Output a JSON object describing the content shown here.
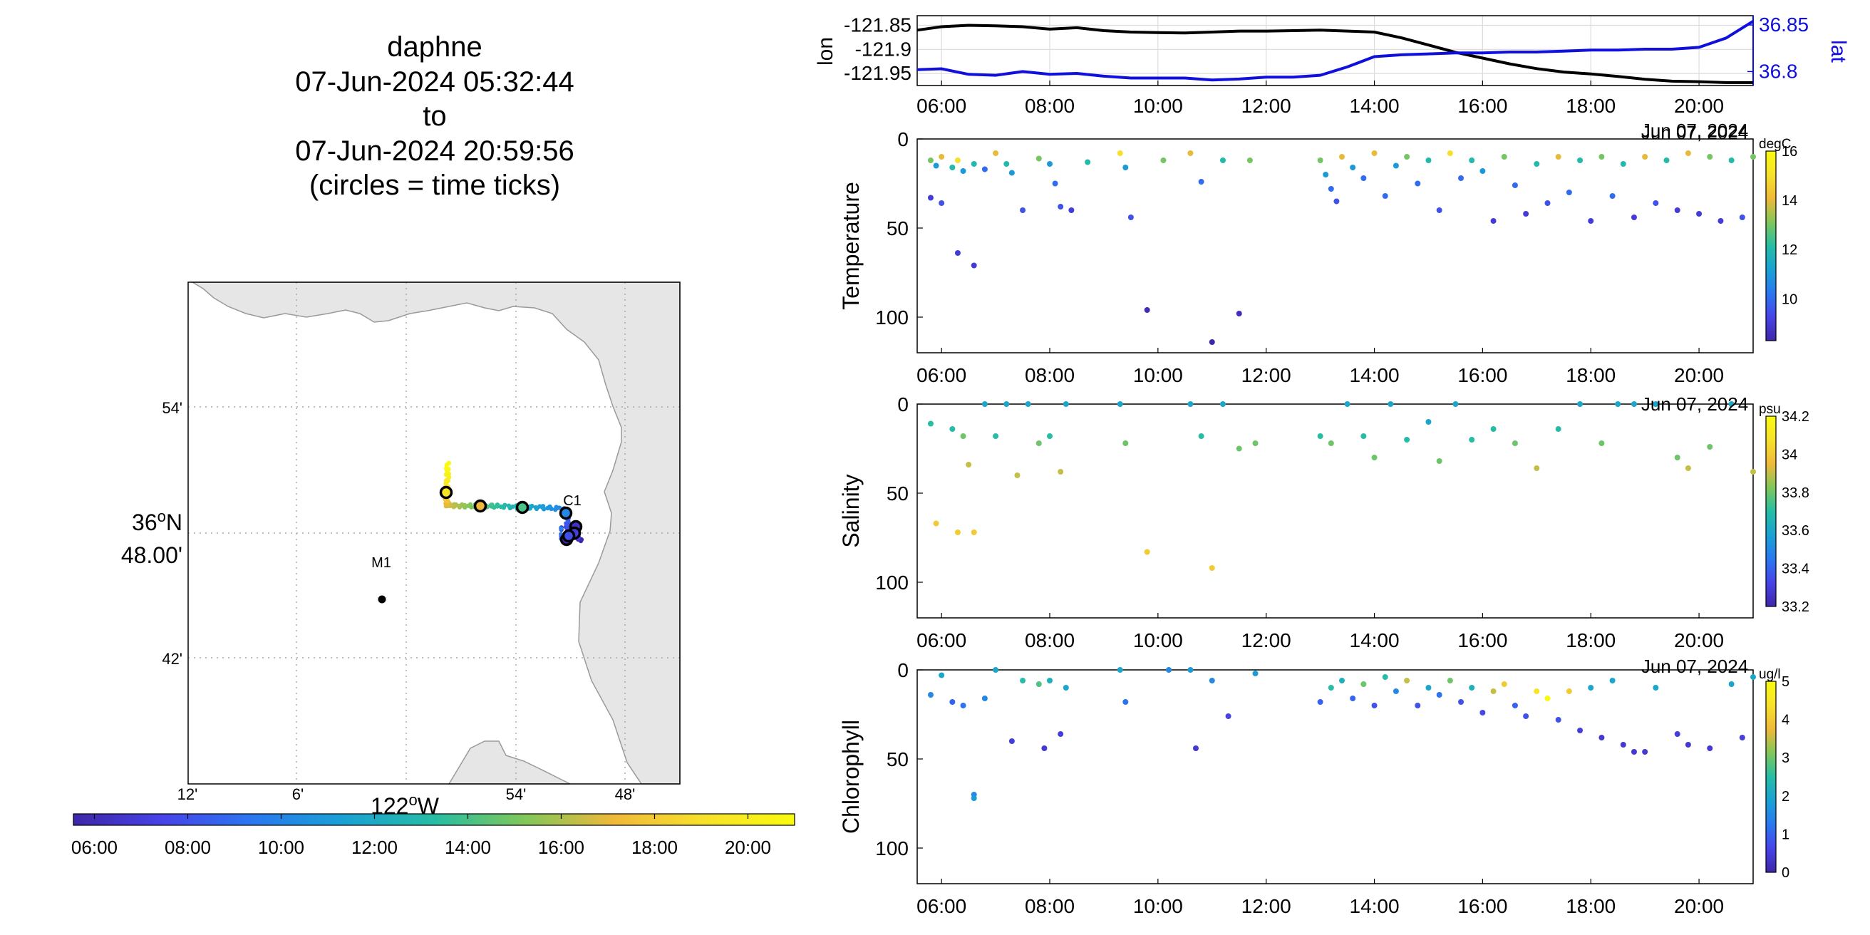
{
  "title_lines": [
    "daphne",
    "07-Jun-2024 05:32:44",
    "to",
    "07-Jun-2024 20:59:56",
    "(circles = time ticks)"
  ],
  "map": {
    "lat_ticks": [
      "54'",
      "36",
      "48.00'",
      "42'"
    ],
    "lat_degree_label": "o",
    "lat_hemisphere": "N",
    "lon_ticks": [
      "12'",
      "6'",
      "54'",
      "48'"
    ],
    "lon_main": "122",
    "lon_degree_label": "o",
    "lon_hemisphere": "W",
    "labels": [
      "C1",
      "M1"
    ],
    "colorbar_ticks": [
      "06:00",
      "08:00",
      "10:00",
      "12:00",
      "14:00",
      "16:00",
      "18:00",
      "20:00"
    ],
    "colormap": [
      "#3e26a8",
      "#4744e8",
      "#2a78f0",
      "#1aa1d4",
      "#26bda4",
      "#80c75a",
      "#f0b93a",
      "#f7e12b",
      "#f9fb0e"
    ]
  },
  "time_axis": {
    "ticks": [
      "06:00",
      "08:00",
      "10:00",
      "12:00",
      "14:00",
      "16:00",
      "18:00",
      "20:00"
    ],
    "date_label": "Jun 07, 2024",
    "start_hour": 5.55,
    "end_hour": 21.0
  },
  "chart_data": [
    {
      "type": "line",
      "ylabel_left": "lon",
      "ylabel_right": "lat",
      "left_ticks": [
        "-121.85",
        "-121.9",
        "-121.95"
      ],
      "right_ticks": [
        "36.85",
        "36.8"
      ],
      "series": [
        {
          "name": "lon",
          "color": "#000000",
          "x_hours": [
            5.55,
            6,
            6.5,
            7,
            7.5,
            8,
            8.5,
            9,
            9.5,
            10,
            10.5,
            11,
            11.5,
            12,
            12.5,
            13,
            13.5,
            14,
            14.5,
            15,
            15.5,
            16,
            16.5,
            17,
            17.5,
            18,
            18.5,
            19,
            19.5,
            20,
            20.5,
            21
          ],
          "values": [
            -121.86,
            -121.853,
            -121.85,
            -121.851,
            -121.853,
            -121.858,
            -121.855,
            -121.861,
            -121.864,
            -121.865,
            -121.866,
            -121.864,
            -121.862,
            -121.862,
            -121.861,
            -121.86,
            -121.862,
            -121.864,
            -121.876,
            -121.891,
            -121.906,
            -121.918,
            -121.93,
            -121.94,
            -121.947,
            -121.951,
            -121.956,
            -121.962,
            -121.966,
            -121.967,
            -121.969,
            -121.969
          ]
        },
        {
          "name": "lat",
          "color": "#1010dd",
          "x_hours": [
            5.55,
            6,
            6.5,
            7,
            7.5,
            8,
            8.5,
            9,
            9.5,
            10,
            10.5,
            11,
            11.5,
            12,
            12.5,
            13,
            13.5,
            14,
            14.5,
            15,
            15.5,
            16,
            16.5,
            17,
            17.5,
            18,
            18.5,
            19,
            19.5,
            20,
            20.5,
            21
          ],
          "values": [
            36.802,
            36.803,
            36.797,
            36.796,
            36.8,
            36.797,
            36.798,
            36.795,
            36.793,
            36.793,
            36.793,
            36.791,
            36.792,
            36.794,
            36.794,
            36.796,
            36.805,
            36.816,
            36.818,
            36.819,
            36.82,
            36.82,
            36.821,
            36.821,
            36.822,
            36.823,
            36.823,
            36.824,
            36.824,
            36.826,
            36.836,
            36.854
          ]
        }
      ]
    },
    {
      "type": "scatter",
      "ylabel": "Temperature",
      "unit": "degC",
      "colorbar_ticks": [
        "16",
        "14",
        "12",
        "10"
      ],
      "clim": [
        8.3,
        16
      ],
      "y_ticks": [
        "0",
        "50",
        "100"
      ],
      "ylim": [
        0,
        120
      ],
      "points": [
        [
          5.8,
          12,
          13
        ],
        [
          5.9,
          15,
          11
        ],
        [
          6.0,
          10,
          14
        ],
        [
          6.2,
          16,
          12
        ],
        [
          6.3,
          12,
          15
        ],
        [
          6.4,
          18,
          11
        ],
        [
          5.8,
          33,
          9
        ],
        [
          6.0,
          36,
          9.5
        ],
        [
          6.3,
          64,
          9
        ],
        [
          6.6,
          71,
          9
        ],
        [
          6.6,
          14,
          12
        ],
        [
          6.8,
          17,
          10
        ],
        [
          7.0,
          8,
          14
        ],
        [
          7.2,
          14,
          12
        ],
        [
          7.3,
          19,
          11
        ],
        [
          7.5,
          40,
          9.5
        ],
        [
          7.8,
          11,
          13
        ],
        [
          8.0,
          14,
          11
        ],
        [
          8.1,
          25,
          10
        ],
        [
          8.2,
          38,
          9.5
        ],
        [
          8.4,
          40,
          9
        ],
        [
          8.7,
          13,
          12
        ],
        [
          9.3,
          8,
          15
        ],
        [
          9.4,
          16,
          11
        ],
        [
          9.5,
          44,
          9.5
        ],
        [
          9.8,
          96,
          8.5
        ],
        [
          10.1,
          12,
          13
        ],
        [
          10.6,
          8,
          14
        ],
        [
          10.8,
          24,
          10
        ],
        [
          11.0,
          114,
          8.3
        ],
        [
          11.2,
          12,
          12
        ],
        [
          11.5,
          98,
          8.6
        ],
        [
          11.7,
          12,
          13
        ],
        [
          13.0,
          12,
          13
        ],
        [
          13.1,
          20,
          11
        ],
        [
          13.2,
          28,
          10
        ],
        [
          13.3,
          35,
          9.5
        ],
        [
          13.4,
          10,
          14
        ],
        [
          13.6,
          16,
          11
        ],
        [
          13.8,
          22,
          10
        ],
        [
          14.0,
          8,
          14
        ],
        [
          14.2,
          32,
          10
        ],
        [
          14.4,
          15,
          11
        ],
        [
          14.6,
          10,
          13
        ],
        [
          14.8,
          25,
          10
        ],
        [
          15.0,
          12,
          12
        ],
        [
          15.2,
          40,
          9.5
        ],
        [
          15.4,
          8,
          15
        ],
        [
          15.6,
          22,
          10
        ],
        [
          15.8,
          12,
          12
        ],
        [
          16.0,
          18,
          11
        ],
        [
          16.2,
          46,
          9
        ],
        [
          16.4,
          10,
          13
        ],
        [
          16.6,
          26,
          10
        ],
        [
          16.8,
          42,
          9
        ],
        [
          17.0,
          14,
          12
        ],
        [
          17.2,
          36,
          9.5
        ],
        [
          17.4,
          10,
          14
        ],
        [
          17.6,
          30,
          10
        ],
        [
          17.8,
          12,
          12
        ],
        [
          18.0,
          46,
          9
        ],
        [
          18.2,
          10,
          13
        ],
        [
          18.4,
          32,
          10
        ],
        [
          18.6,
          14,
          12
        ],
        [
          18.8,
          44,
          9
        ],
        [
          19.0,
          10,
          14
        ],
        [
          19.2,
          36,
          9.5
        ],
        [
          19.4,
          12,
          12
        ],
        [
          19.6,
          40,
          9
        ],
        [
          19.8,
          8,
          14
        ],
        [
          20.0,
          42,
          9
        ],
        [
          20.2,
          10,
          13
        ],
        [
          20.4,
          46,
          9
        ],
        [
          20.6,
          12,
          12
        ],
        [
          20.8,
          44,
          9.5
        ],
        [
          21.0,
          10,
          13
        ]
      ]
    },
    {
      "type": "scatter",
      "ylabel": "Salinity",
      "unit": "psu",
      "colorbar_ticks": [
        "34.2",
        "34",
        "33.8",
        "33.6",
        "33.4",
        "33.2"
      ],
      "clim": [
        33.2,
        34.2
      ],
      "y_ticks": [
        "0",
        "50",
        "100"
      ],
      "ylim": [
        0,
        120
      ],
      "points": [
        [
          5.8,
          11,
          33.7
        ],
        [
          5.9,
          67,
          34.0
        ],
        [
          6.2,
          14,
          33.7
        ],
        [
          6.3,
          72,
          34.0
        ],
        [
          6.4,
          18,
          33.8
        ],
        [
          6.5,
          34,
          33.9
        ],
        [
          6.6,
          72,
          34.0
        ],
        [
          6.8,
          0,
          33.6
        ],
        [
          7.0,
          18,
          33.7
        ],
        [
          7.2,
          0,
          33.6
        ],
        [
          7.4,
          40,
          33.9
        ],
        [
          7.6,
          0,
          33.6
        ],
        [
          7.8,
          22,
          33.8
        ],
        [
          8.0,
          18,
          33.7
        ],
        [
          8.2,
          38,
          33.9
        ],
        [
          8.3,
          0,
          33.6
        ],
        [
          9.3,
          0,
          33.6
        ],
        [
          9.4,
          22,
          33.8
        ],
        [
          9.8,
          83,
          34.0
        ],
        [
          10.6,
          0,
          33.6
        ],
        [
          10.8,
          18,
          33.7
        ],
        [
          11.0,
          92,
          34.0
        ],
        [
          11.2,
          0,
          33.6
        ],
        [
          11.5,
          25,
          33.8
        ],
        [
          11.8,
          22,
          33.8
        ],
        [
          13.0,
          18,
          33.7
        ],
        [
          13.2,
          22,
          33.8
        ],
        [
          13.5,
          0,
          33.6
        ],
        [
          13.8,
          18,
          33.7
        ],
        [
          14.0,
          30,
          33.8
        ],
        [
          14.3,
          0,
          33.6
        ],
        [
          14.6,
          20,
          33.7
        ],
        [
          15.0,
          10,
          33.6
        ],
        [
          15.2,
          32,
          33.8
        ],
        [
          15.5,
          0,
          33.6
        ],
        [
          15.8,
          20,
          33.7
        ],
        [
          16.2,
          14,
          33.7
        ],
        [
          16.6,
          22,
          33.8
        ],
        [
          17.0,
          36,
          33.9
        ],
        [
          17.4,
          14,
          33.7
        ],
        [
          17.8,
          0,
          33.6
        ],
        [
          18.2,
          22,
          33.8
        ],
        [
          18.5,
          0,
          33.6
        ],
        [
          18.8,
          0,
          33.6
        ],
        [
          19.2,
          0,
          33.6
        ],
        [
          19.6,
          30,
          33.8
        ],
        [
          19.8,
          36,
          33.9
        ],
        [
          20.2,
          24,
          33.8
        ],
        [
          20.6,
          0,
          33.6
        ],
        [
          21.0,
          38,
          33.9
        ]
      ]
    },
    {
      "type": "scatter",
      "ylabel": "Chlorophyll",
      "unit": "ug/l",
      "colorbar_ticks": [
        "5",
        "4",
        "3",
        "2",
        "1",
        "0"
      ],
      "clim": [
        0,
        5
      ],
      "y_ticks": [
        "0",
        "50",
        "100"
      ],
      "ylim": [
        0,
        120
      ],
      "points": [
        [
          5.8,
          14,
          1.5
        ],
        [
          6.0,
          3,
          2
        ],
        [
          6.2,
          18,
          1
        ],
        [
          6.4,
          20,
          1.2
        ],
        [
          6.6,
          70,
          1.5
        ],
        [
          6.6,
          72,
          1.8
        ],
        [
          6.8,
          16,
          1.5
        ],
        [
          7.0,
          0,
          2
        ],
        [
          7.3,
          40,
          0.5
        ],
        [
          7.5,
          6,
          2.5
        ],
        [
          7.8,
          8,
          2.8
        ],
        [
          7.9,
          44,
          0.4
        ],
        [
          8.0,
          6,
          2.2
        ],
        [
          8.2,
          36,
          0.5
        ],
        [
          8.3,
          10,
          2
        ],
        [
          9.3,
          0,
          2
        ],
        [
          9.4,
          18,
          1.2
        ],
        [
          10.2,
          0,
          1.5
        ],
        [
          10.6,
          0,
          1.8
        ],
        [
          10.7,
          44,
          0.4
        ],
        [
          11.0,
          6,
          1.5
        ],
        [
          11.3,
          26,
          0.6
        ],
        [
          11.8,
          2,
          1.8
        ],
        [
          13.0,
          18,
          1
        ],
        [
          13.2,
          10,
          2.5
        ],
        [
          13.4,
          6,
          2.2
        ],
        [
          13.6,
          16,
          1
        ],
        [
          13.8,
          8,
          3
        ],
        [
          14.0,
          20,
          0.8
        ],
        [
          14.2,
          4,
          2.5
        ],
        [
          14.4,
          12,
          1.5
        ],
        [
          14.6,
          6,
          3.5
        ],
        [
          14.8,
          20,
          0.8
        ],
        [
          15.0,
          10,
          2
        ],
        [
          15.2,
          14,
          1.2
        ],
        [
          15.4,
          6,
          3
        ],
        [
          15.6,
          18,
          0.8
        ],
        [
          15.8,
          10,
          2.2
        ],
        [
          16.0,
          24,
          0.7
        ],
        [
          16.2,
          12,
          3.5
        ],
        [
          16.4,
          8,
          4
        ],
        [
          16.6,
          20,
          1
        ],
        [
          16.8,
          26,
          0.8
        ],
        [
          17.0,
          12,
          4.5
        ],
        [
          17.2,
          16,
          5
        ],
        [
          17.4,
          28,
          0.8
        ],
        [
          17.6,
          12,
          4
        ],
        [
          17.8,
          34,
          0.5
        ],
        [
          18.0,
          10,
          2
        ],
        [
          18.2,
          38,
          0.4
        ],
        [
          18.4,
          6,
          2
        ],
        [
          18.6,
          42,
          0.4
        ],
        [
          18.8,
          46,
          0.4
        ],
        [
          19.0,
          46,
          0.4
        ],
        [
          19.2,
          10,
          2
        ],
        [
          19.6,
          36,
          0.5
        ],
        [
          19.8,
          42,
          0.4
        ],
        [
          20.2,
          44,
          0.4
        ],
        [
          20.6,
          8,
          2
        ],
        [
          20.8,
          38,
          0.5
        ],
        [
          21.0,
          4,
          2
        ]
      ]
    }
  ]
}
